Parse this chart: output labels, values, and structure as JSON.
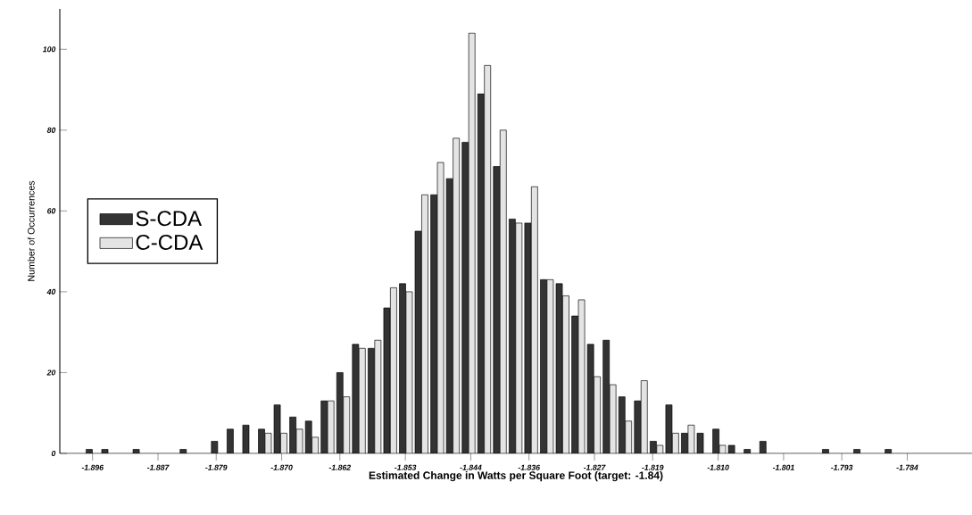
{
  "chart_data": {
    "type": "histogram",
    "xlabel": "Estimated Change in Watts per Square Foot (target: -1.84)",
    "ylabel": "Number of Occurrences",
    "bins": [
      -1.89708,
      -1.89492,
      -1.89277,
      -1.89062,
      -1.88846,
      -1.88631,
      -1.88415,
      -1.882,
      -1.87985,
      -1.87769,
      -1.87554,
      -1.87338,
      -1.87123,
      -1.86908,
      -1.86692,
      -1.86477,
      -1.86262,
      -1.86046,
      -1.85831,
      -1.85615,
      -1.854,
      -1.85185,
      -1.84969,
      -1.84754,
      -1.84538,
      -1.84323,
      -1.84108,
      -1.83892,
      -1.83677,
      -1.83462,
      -1.83246,
      -1.83031,
      -1.82815,
      -1.826,
      -1.82385,
      -1.82169,
      -1.81954,
      -1.81738,
      -1.81523,
      -1.81308,
      -1.81092,
      -1.80877,
      -1.80662,
      -1.80446,
      -1.80231,
      -1.80015,
      -1.798,
      -1.79585,
      -1.79369,
      -1.79154,
      -1.78938,
      -1.78723,
      -1.78508
    ],
    "series": [
      {
        "name": "S-CDA",
        "color": "#333333",
        "values": [
          1,
          1,
          0,
          1,
          0,
          0,
          1,
          0,
          3,
          6,
          7,
          6,
          12,
          9,
          8,
          13,
          20,
          27,
          26,
          36,
          42,
          55,
          64,
          68,
          77,
          89,
          71,
          58,
          57,
          43,
          42,
          34,
          27,
          28,
          14,
          13,
          3,
          12,
          5,
          5,
          6,
          2,
          1,
          3,
          0,
          0,
          0,
          1,
          0,
          1,
          0,
          1
        ]
      },
      {
        "name": "C-CDA",
        "color": "#e4e4e4",
        "values": [
          0,
          0,
          0,
          0,
          0,
          0,
          0,
          0,
          0,
          0,
          0,
          5,
          5,
          6,
          4,
          13,
          14,
          26,
          28,
          41,
          40,
          64,
          72,
          78,
          104,
          96,
          80,
          57,
          66,
          43,
          39,
          38,
          19,
          17,
          8,
          18,
          2,
          5,
          7,
          0,
          2,
          0,
          0,
          0,
          0,
          0,
          0,
          0,
          0,
          0,
          0,
          0
        ]
      }
    ],
    "xlim": [
      -1.9005,
      -1.7751
    ],
    "ylim": [
      0,
      110
    ],
    "xticks": [
      -1.896,
      -1.887,
      -1.879,
      {
        "value": -1.87,
        "label": "-1.870"
      },
      -1.862,
      -1.853,
      -1.844,
      -1.836,
      -1.827,
      -1.819,
      {
        "value": -1.81,
        "label": "-1.810"
      },
      -1.801,
      -1.793,
      -1.784
    ],
    "yticks": [
      0,
      20,
      40,
      60,
      80,
      100
    ],
    "legend": "left"
  }
}
